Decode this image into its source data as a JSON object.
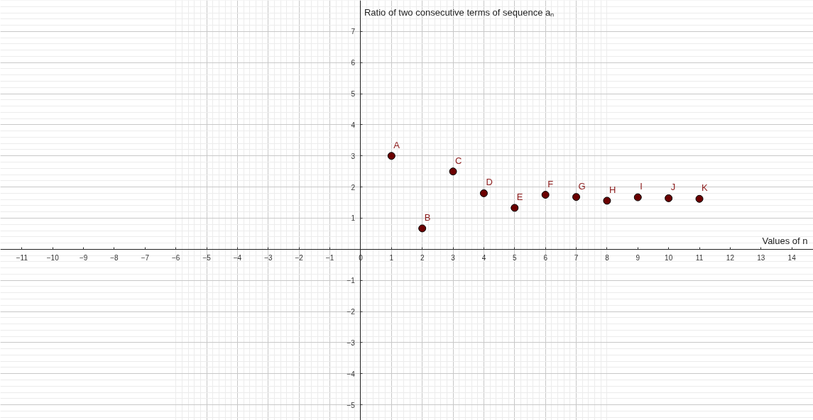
{
  "chart_data": {
    "type": "scatter",
    "xlabel": "Values of n",
    "ylabel": "Ratio of two consecutive terms of sequence aₙ",
    "x": [
      1,
      2,
      3,
      4,
      5,
      6,
      7,
      8,
      9,
      10,
      11
    ],
    "series": [
      {
        "color": "#6b0000",
        "values": [
          3.0,
          0.67,
          2.5,
          1.8,
          1.33,
          1.75,
          1.68,
          1.56,
          1.67,
          1.64,
          1.62
        ],
        "value_labels": [
          "A",
          "B",
          "C",
          "D",
          "E",
          "F",
          "G",
          "H",
          "I",
          "J",
          "K"
        ]
      }
    ],
    "xlim": [
      -11.7,
      14.7
    ],
    "ylim": [
      -5.5,
      8.0
    ],
    "xticks": [
      -11,
      -10,
      -9,
      -8,
      -7,
      -6,
      -5,
      -4,
      -3,
      -2,
      -1,
      0,
      1,
      2,
      3,
      4,
      5,
      6,
      7,
      8,
      9,
      10,
      11,
      12,
      13,
      14
    ],
    "yticks": [
      -5,
      -4,
      -3,
      -2,
      -1,
      1,
      2,
      3,
      4,
      5,
      6,
      7
    ],
    "grid": true,
    "marker": "circle"
  }
}
